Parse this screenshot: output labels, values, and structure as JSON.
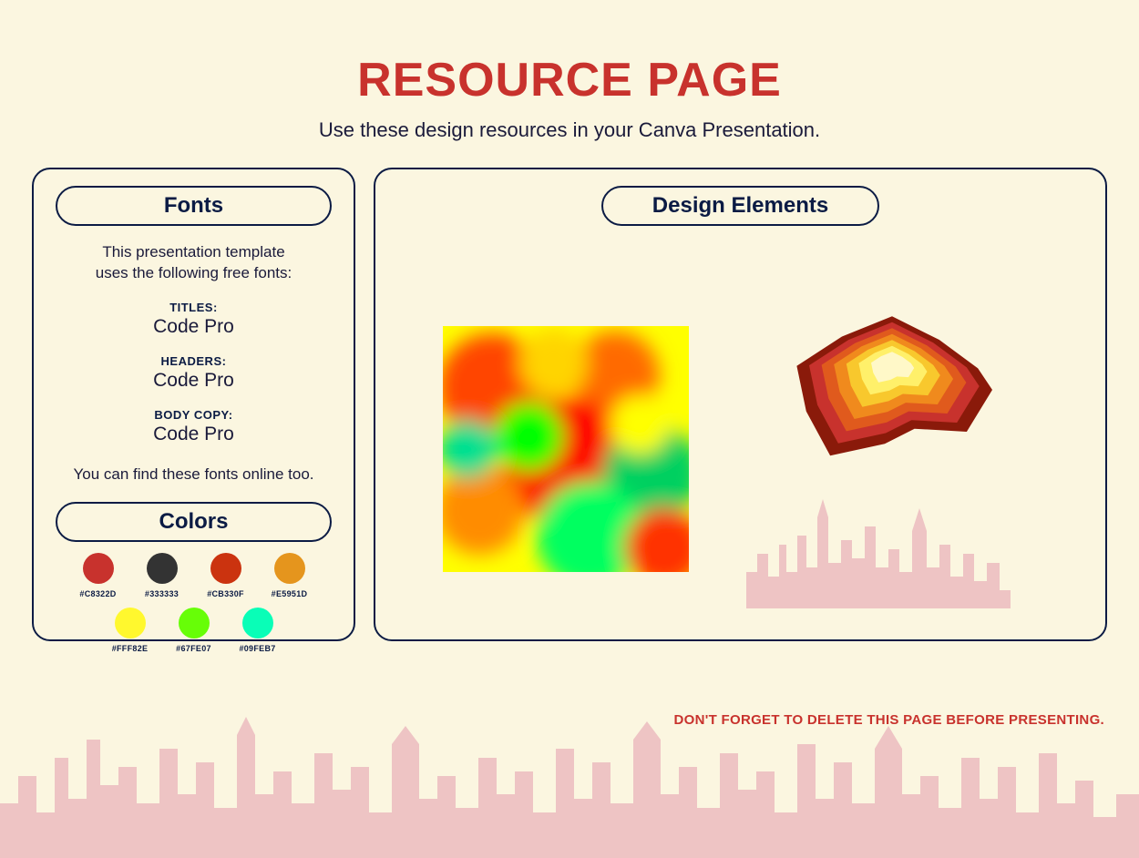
{
  "page": {
    "title": "RESOURCE PAGE",
    "subtitle": "Use these design resources in your Canva Presentation.",
    "background_color": "#fbf6e0",
    "title_color": "#c8322d",
    "text_color": "#1a1a3a",
    "border_color": "#0b1b44",
    "title_fontsize": 52,
    "subtitle_fontsize": 22
  },
  "fonts_panel": {
    "header": "Fonts",
    "intro_line1": "This presentation template",
    "intro_line2": "uses the following free fonts:",
    "items": [
      {
        "label": "TITLES:",
        "value": "Code Pro"
      },
      {
        "label": "HEADERS:",
        "value": "Code Pro"
      },
      {
        "label": "BODY COPY:",
        "value": "Code Pro"
      }
    ],
    "note": "You can find these fonts online too."
  },
  "colors_panel": {
    "header": "Colors",
    "swatches_row1": [
      {
        "hex": "#C8322D",
        "label": "#C8322D"
      },
      {
        "hex": "#333333",
        "label": "#333333"
      },
      {
        "hex": "#CB330F",
        "label": "#CB330F"
      },
      {
        "hex": "#E5951D",
        "label": "#E5951D"
      }
    ],
    "swatches_row2": [
      {
        "hex": "#FFF82E",
        "label": "#FFF82E"
      },
      {
        "hex": "#67FE07",
        "label": "#67FE07"
      },
      {
        "hex": "#09FEB7",
        "label": "#09FEB7"
      }
    ]
  },
  "elements_panel": {
    "header": "Design Elements",
    "heatmap": {
      "type": "abstract-heatmap",
      "colors": [
        "#ff0000",
        "#ff7f00",
        "#ffff00",
        "#00ff00",
        "#00d090"
      ]
    },
    "blob": {
      "type": "contour-blob",
      "layers": [
        "#8a1a0a",
        "#c8322d",
        "#e05a1d",
        "#f08a1d",
        "#f8c82d",
        "#fff06a",
        "#fff8c8"
      ]
    },
    "skyline_color": "#eec4c4"
  },
  "reminder": "DON'T FORGET TO DELETE THIS PAGE BEFORE PRESENTING."
}
